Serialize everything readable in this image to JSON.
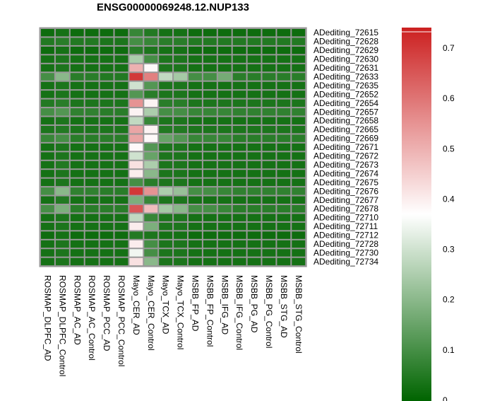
{
  "chart_data": {
    "type": "heatmap",
    "title": "ENSG00000069248.12.NUP133",
    "rows": [
      "ADediting_72615",
      "ADediting_72628",
      "ADediting_72629",
      "ADediting_72630",
      "ADediting_72631",
      "ADediting_72633",
      "ADediting_72635",
      "ADediting_72652",
      "ADediting_72654",
      "ADediting_72657",
      "ADediting_72658",
      "ADediting_72665",
      "ADediting_72669",
      "ADediting_72671",
      "ADediting_72672",
      "ADediting_72673",
      "ADediting_72674",
      "ADediting_72675",
      "ADediting_72676",
      "ADediting_72677",
      "ADediting_72678",
      "ADediting_72710",
      "ADediting_72711",
      "ADediting_72712",
      "ADediting_72728",
      "ADediting_72730",
      "ADediting_72734"
    ],
    "columns": [
      "ROSMAP_DLPFC_AD",
      "ROSMAP_DLPFC_Control",
      "ROSMAP_AC_AD",
      "ROSMAP_AC_Control",
      "ROSMAP_PCC_AD",
      "ROSMAP_PCC_Control",
      "Mayo_CER_AD",
      "Mayo_CER_Control",
      "Mayo_TCX_AD",
      "Mayo_TCX_Control",
      "MSBB_FP_AD",
      "MSBB_FP_Control",
      "MSBB_IFG_AD",
      "MSBB_IFG_Control",
      "MSBB_PG_AD",
      "MSBB_PG_Control",
      "MSBB_STG_AD",
      "MSBB_STG_Control"
    ],
    "values": [
      [
        0.02,
        0.03,
        0.02,
        0.02,
        0.02,
        0.02,
        0.08,
        0.05,
        0.03,
        0.03,
        0.02,
        0.02,
        0.02,
        0.02,
        0.02,
        0.02,
        0.02,
        0.02
      ],
      [
        0.05,
        0.06,
        0.05,
        0.05,
        0.04,
        0.04,
        0.1,
        0.08,
        0.06,
        0.06,
        0.05,
        0.05,
        0.05,
        0.05,
        0.05,
        0.05,
        0.05,
        0.05
      ],
      [
        0.02,
        0.03,
        0.02,
        0.02,
        0.02,
        0.02,
        0.06,
        0.04,
        0.03,
        0.03,
        0.02,
        0.02,
        0.02,
        0.02,
        0.02,
        0.02,
        0.02,
        0.02
      ],
      [
        0.03,
        0.04,
        0.03,
        0.03,
        0.03,
        0.03,
        0.25,
        0.1,
        0.04,
        0.04,
        0.03,
        0.03,
        0.03,
        0.03,
        0.03,
        0.03,
        0.03,
        0.03
      ],
      [
        0.03,
        0.04,
        0.03,
        0.03,
        0.03,
        0.03,
        0.5,
        0.38,
        0.04,
        0.04,
        0.03,
        0.03,
        0.03,
        0.03,
        0.03,
        0.03,
        0.03,
        0.03
      ],
      [
        0.1,
        0.2,
        0.06,
        0.06,
        0.05,
        0.05,
        0.7,
        0.58,
        0.28,
        0.24,
        0.1,
        0.1,
        0.17,
        0.06,
        0.06,
        0.06,
        0.06,
        0.06
      ],
      [
        0.03,
        0.04,
        0.03,
        0.03,
        0.03,
        0.03,
        0.3,
        0.12,
        0.04,
        0.04,
        0.03,
        0.03,
        0.03,
        0.03,
        0.03,
        0.03,
        0.03,
        0.03
      ],
      [
        0.03,
        0.04,
        0.03,
        0.03,
        0.03,
        0.03,
        0.12,
        0.06,
        0.04,
        0.04,
        0.03,
        0.03,
        0.03,
        0.03,
        0.03,
        0.03,
        0.03,
        0.03
      ],
      [
        0.05,
        0.06,
        0.04,
        0.04,
        0.04,
        0.04,
        0.55,
        0.39,
        0.06,
        0.06,
        0.04,
        0.04,
        0.04,
        0.04,
        0.04,
        0.04,
        0.04,
        0.04
      ],
      [
        0.1,
        0.12,
        0.07,
        0.07,
        0.06,
        0.06,
        0.39,
        0.25,
        0.1,
        0.1,
        0.08,
        0.08,
        0.08,
        0.07,
        0.07,
        0.07,
        0.07,
        0.07
      ],
      [
        0.03,
        0.04,
        0.03,
        0.03,
        0.03,
        0.03,
        0.28,
        0.08,
        0.04,
        0.04,
        0.03,
        0.03,
        0.03,
        0.03,
        0.03,
        0.03,
        0.03,
        0.03
      ],
      [
        0.04,
        0.05,
        0.04,
        0.04,
        0.04,
        0.04,
        0.52,
        0.39,
        0.05,
        0.05,
        0.04,
        0.04,
        0.04,
        0.04,
        0.04,
        0.04,
        0.04,
        0.04
      ],
      [
        0.08,
        0.1,
        0.06,
        0.06,
        0.06,
        0.06,
        0.52,
        0.38,
        0.15,
        0.12,
        0.08,
        0.08,
        0.08,
        0.06,
        0.06,
        0.06,
        0.06,
        0.06
      ],
      [
        0.03,
        0.04,
        0.03,
        0.03,
        0.03,
        0.03,
        0.38,
        0.12,
        0.04,
        0.04,
        0.03,
        0.03,
        0.03,
        0.03,
        0.03,
        0.03,
        0.03,
        0.03
      ],
      [
        0.03,
        0.04,
        0.03,
        0.03,
        0.03,
        0.03,
        0.3,
        0.15,
        0.04,
        0.04,
        0.03,
        0.03,
        0.03,
        0.03,
        0.03,
        0.03,
        0.03,
        0.03
      ],
      [
        0.03,
        0.05,
        0.03,
        0.03,
        0.03,
        0.03,
        0.42,
        0.25,
        0.04,
        0.04,
        0.03,
        0.03,
        0.03,
        0.03,
        0.03,
        0.03,
        0.03,
        0.03
      ],
      [
        0.03,
        0.04,
        0.03,
        0.03,
        0.03,
        0.03,
        0.4,
        0.2,
        0.04,
        0.04,
        0.03,
        0.03,
        0.03,
        0.03,
        0.03,
        0.03,
        0.03,
        0.03
      ],
      [
        0.03,
        0.04,
        0.03,
        0.03,
        0.03,
        0.03,
        0.1,
        0.06,
        0.04,
        0.04,
        0.03,
        0.03,
        0.03,
        0.03,
        0.03,
        0.03,
        0.03,
        0.03
      ],
      [
        0.1,
        0.2,
        0.07,
        0.07,
        0.06,
        0.06,
        0.7,
        0.55,
        0.25,
        0.22,
        0.1,
        0.1,
        0.08,
        0.07,
        0.07,
        0.07,
        0.07,
        0.07
      ],
      [
        0.03,
        0.05,
        0.03,
        0.03,
        0.03,
        0.03,
        0.18,
        0.08,
        0.04,
        0.04,
        0.03,
        0.03,
        0.03,
        0.03,
        0.03,
        0.03,
        0.03,
        0.03
      ],
      [
        0.1,
        0.18,
        0.06,
        0.06,
        0.06,
        0.06,
        0.65,
        0.48,
        0.24,
        0.2,
        0.1,
        0.1,
        0.08,
        0.06,
        0.06,
        0.06,
        0.06,
        0.06
      ],
      [
        0.03,
        0.04,
        0.03,
        0.03,
        0.03,
        0.03,
        0.28,
        0.08,
        0.04,
        0.04,
        0.03,
        0.03,
        0.03,
        0.03,
        0.03,
        0.03,
        0.03,
        0.03
      ],
      [
        0.03,
        0.04,
        0.03,
        0.03,
        0.03,
        0.03,
        0.4,
        0.18,
        0.04,
        0.04,
        0.03,
        0.03,
        0.03,
        0.03,
        0.03,
        0.03,
        0.03,
        0.03
      ],
      [
        0.02,
        0.03,
        0.02,
        0.02,
        0.02,
        0.02,
        0.05,
        0.04,
        0.03,
        0.03,
        0.02,
        0.02,
        0.02,
        0.02,
        0.02,
        0.02,
        0.02,
        0.02
      ],
      [
        0.03,
        0.04,
        0.03,
        0.03,
        0.03,
        0.03,
        0.4,
        0.1,
        0.04,
        0.04,
        0.03,
        0.03,
        0.03,
        0.03,
        0.03,
        0.03,
        0.03,
        0.03
      ],
      [
        0.03,
        0.04,
        0.03,
        0.03,
        0.03,
        0.03,
        0.35,
        0.1,
        0.04,
        0.04,
        0.03,
        0.03,
        0.03,
        0.03,
        0.03,
        0.03,
        0.03,
        0.03
      ],
      [
        0.03,
        0.04,
        0.03,
        0.03,
        0.03,
        0.03,
        0.42,
        0.2,
        0.04,
        0.04,
        0.03,
        0.03,
        0.03,
        0.03,
        0.03,
        0.03,
        0.03,
        0.03
      ]
    ],
    "colorscale": {
      "min": 0,
      "max": 0.74,
      "low_color": "#006400",
      "mid_color": "#ffffff",
      "mid_value": 0.37,
      "high_color": "#cc2020"
    },
    "colorbar_ticks": [
      "0",
      "0.1",
      "0.2",
      "0.3",
      "0.4",
      "0.5",
      "0.6",
      "0.7"
    ],
    "colorbar_tick_values": [
      0,
      0.1,
      0.2,
      0.3,
      0.4,
      0.5,
      0.6,
      0.7
    ],
    "grid_color": "#999999"
  }
}
